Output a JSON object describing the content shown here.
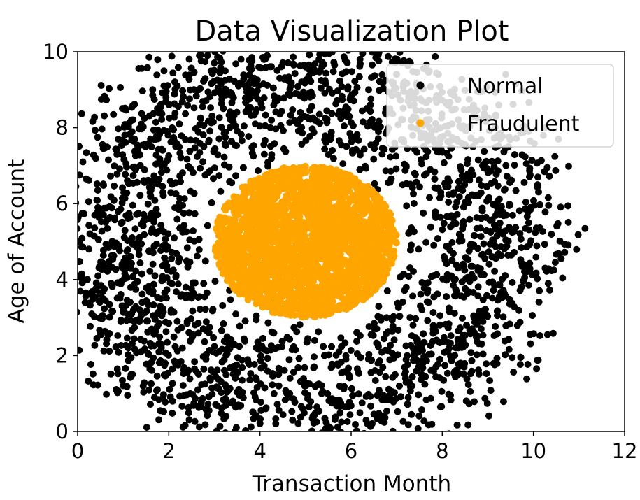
{
  "chart_data": {
    "type": "scatter",
    "title": "Data Visualization Plot",
    "xlabel": "Transaction Month",
    "ylabel": "Age of Account",
    "xlim": [
      0,
      12
    ],
    "ylim": [
      0,
      10
    ],
    "x_ticks": [
      0,
      2,
      4,
      6,
      8,
      10,
      12
    ],
    "y_ticks": [
      0,
      2,
      4,
      6,
      8,
      10
    ],
    "grid": false,
    "legend": "top-right",
    "series": [
      {
        "name": "Normal",
        "color": "#000000",
        "distribution": "ring",
        "center": [
          5,
          5
        ],
        "inner_radius": 2,
        "outer_radius": 6.3,
        "count": 2600
      },
      {
        "name": "Fraudulent",
        "color": "#ffa500",
        "distribution": "disk",
        "center": [
          5,
          5
        ],
        "radius": 2,
        "count": 2600
      }
    ]
  }
}
